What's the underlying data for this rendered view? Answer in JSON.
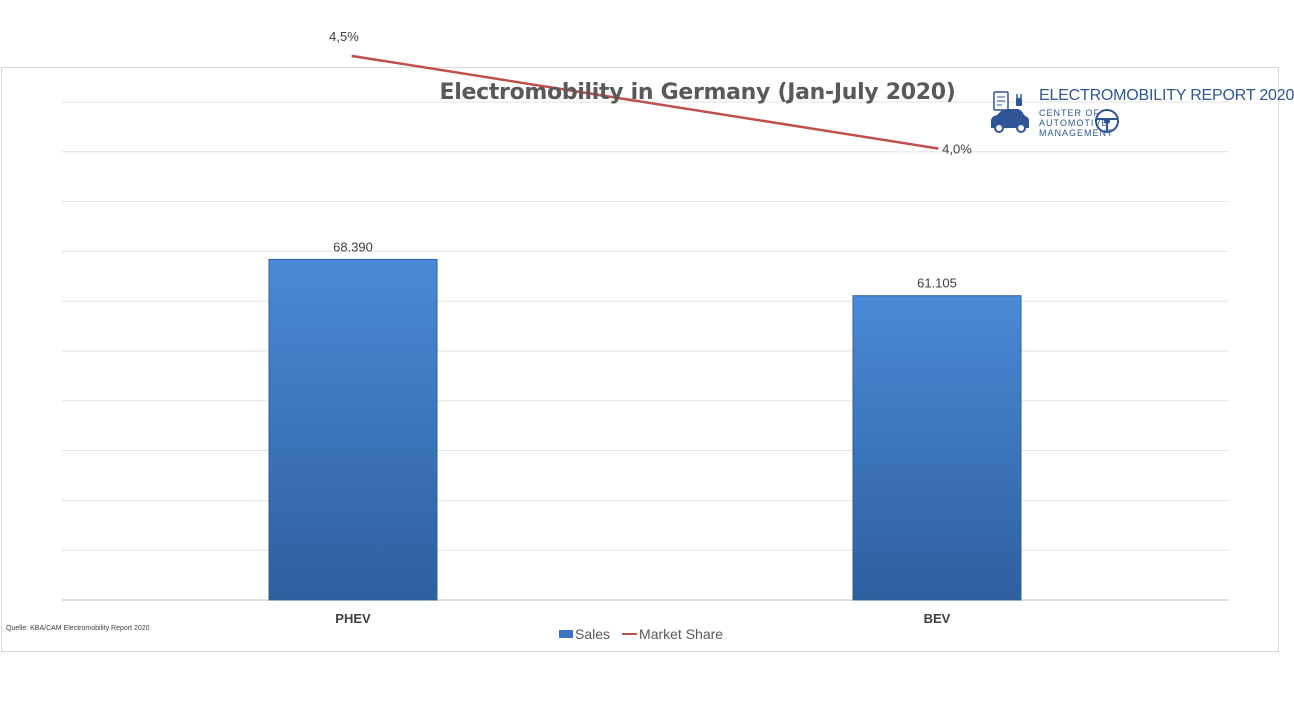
{
  "chart_data": {
    "type": "bar",
    "title": "Electromobility in Germany (Jan-July 2020)",
    "categories": [
      "PHEV",
      "BEV"
    ],
    "series": [
      {
        "name": "Sales",
        "kind": "bar",
        "values": [
          68390,
          61105
        ],
        "labels": [
          "68.390",
          "61.105"
        ],
        "color": "#3a73bf"
      },
      {
        "name": "Market Share",
        "kind": "line",
        "values": [
          4.5,
          4.0
        ],
        "labels": [
          "4,5%",
          "4,0%"
        ],
        "color": "#c0504d"
      }
    ],
    "grid": true,
    "legend_position": "bottom"
  },
  "logo": {
    "title": "ELECTROMOBILITY REPORT 2020",
    "line1": "CENTER OF",
    "line2": "AUTOMOTIVE",
    "line3": "MANAGEMENT"
  },
  "source_note": "Quelle: KBA/CAM Electromobility Report 2020",
  "icons": [
    "car-charger-logo-icon",
    "steering-wheel-logo-icon"
  ]
}
